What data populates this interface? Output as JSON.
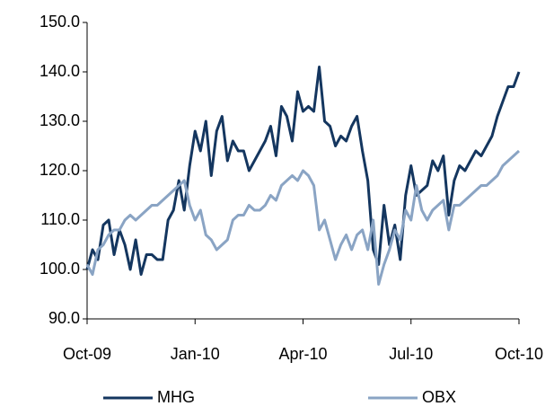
{
  "chart_data": {
    "type": "line",
    "categories": [
      "Oct-09",
      null,
      null,
      null,
      null,
      null,
      null,
      null,
      null,
      null,
      null,
      null,
      null,
      null,
      null,
      null,
      null,
      null,
      null,
      null,
      "Jan-10",
      null,
      null,
      null,
      null,
      null,
      null,
      null,
      null,
      null,
      null,
      null,
      null,
      null,
      null,
      null,
      null,
      null,
      null,
      null,
      "Apr-10",
      null,
      null,
      null,
      null,
      null,
      null,
      null,
      null,
      null,
      null,
      null,
      null,
      null,
      null,
      null,
      null,
      null,
      null,
      null,
      "Jul-10",
      null,
      null,
      null,
      null,
      null,
      null,
      null,
      null,
      null,
      null,
      null,
      null,
      null,
      null,
      null,
      null,
      null,
      null,
      null,
      "Oct-10"
    ],
    "series": [
      {
        "name": "MHG",
        "color": "#14365f",
        "values": [
          100,
          104,
          102,
          109,
          110,
          103,
          108,
          105,
          100,
          106,
          99,
          103,
          103,
          102,
          102,
          110,
          112,
          118,
          112,
          121,
          128,
          124,
          130,
          119,
          128,
          131,
          122,
          126,
          124,
          124,
          120,
          122,
          124,
          126,
          129,
          123,
          133,
          131,
          126,
          136,
          132,
          133,
          132,
          141,
          130,
          129,
          125,
          127,
          126,
          129,
          131,
          124,
          118,
          104,
          101,
          113,
          105,
          109,
          102,
          115,
          121,
          115,
          116,
          117,
          122,
          120,
          123,
          111,
          118,
          121,
          120,
          122,
          124,
          123,
          125,
          127,
          131,
          134,
          137,
          137,
          140
        ]
      },
      {
        "name": "OBX",
        "color": "#8aa4c4",
        "values": [
          101,
          99,
          104,
          105,
          107,
          108,
          108,
          110,
          111,
          110,
          111,
          112,
          113,
          113,
          114,
          115,
          116,
          117,
          118,
          113,
          110,
          112,
          107,
          106,
          104,
          105,
          106,
          110,
          111,
          111,
          113,
          112,
          112,
          113,
          115,
          114,
          117,
          118,
          119,
          118,
          120,
          119,
          117,
          108,
          110,
          106,
          102,
          105,
          107,
          104,
          107,
          108,
          104,
          110,
          97,
          101,
          104,
          108,
          106,
          112,
          110,
          117,
          112,
          110,
          112,
          113,
          114,
          108,
          113,
          113,
          114,
          115,
          116,
          117,
          117,
          118,
          119,
          121,
          122,
          123,
          124
        ]
      }
    ],
    "ylim": [
      90,
      150
    ],
    "yticks": [
      {
        "value": 90,
        "label": "90.0"
      },
      {
        "value": 100,
        "label": "100.0"
      },
      {
        "value": 110,
        "label": "110.0"
      },
      {
        "value": 120,
        "label": "120.0"
      },
      {
        "value": 130,
        "label": "130.0"
      },
      {
        "value": 140,
        "label": "140.0"
      },
      {
        "value": 150,
        "label": "150.0"
      }
    ],
    "grid": false,
    "legend": "bottom"
  }
}
